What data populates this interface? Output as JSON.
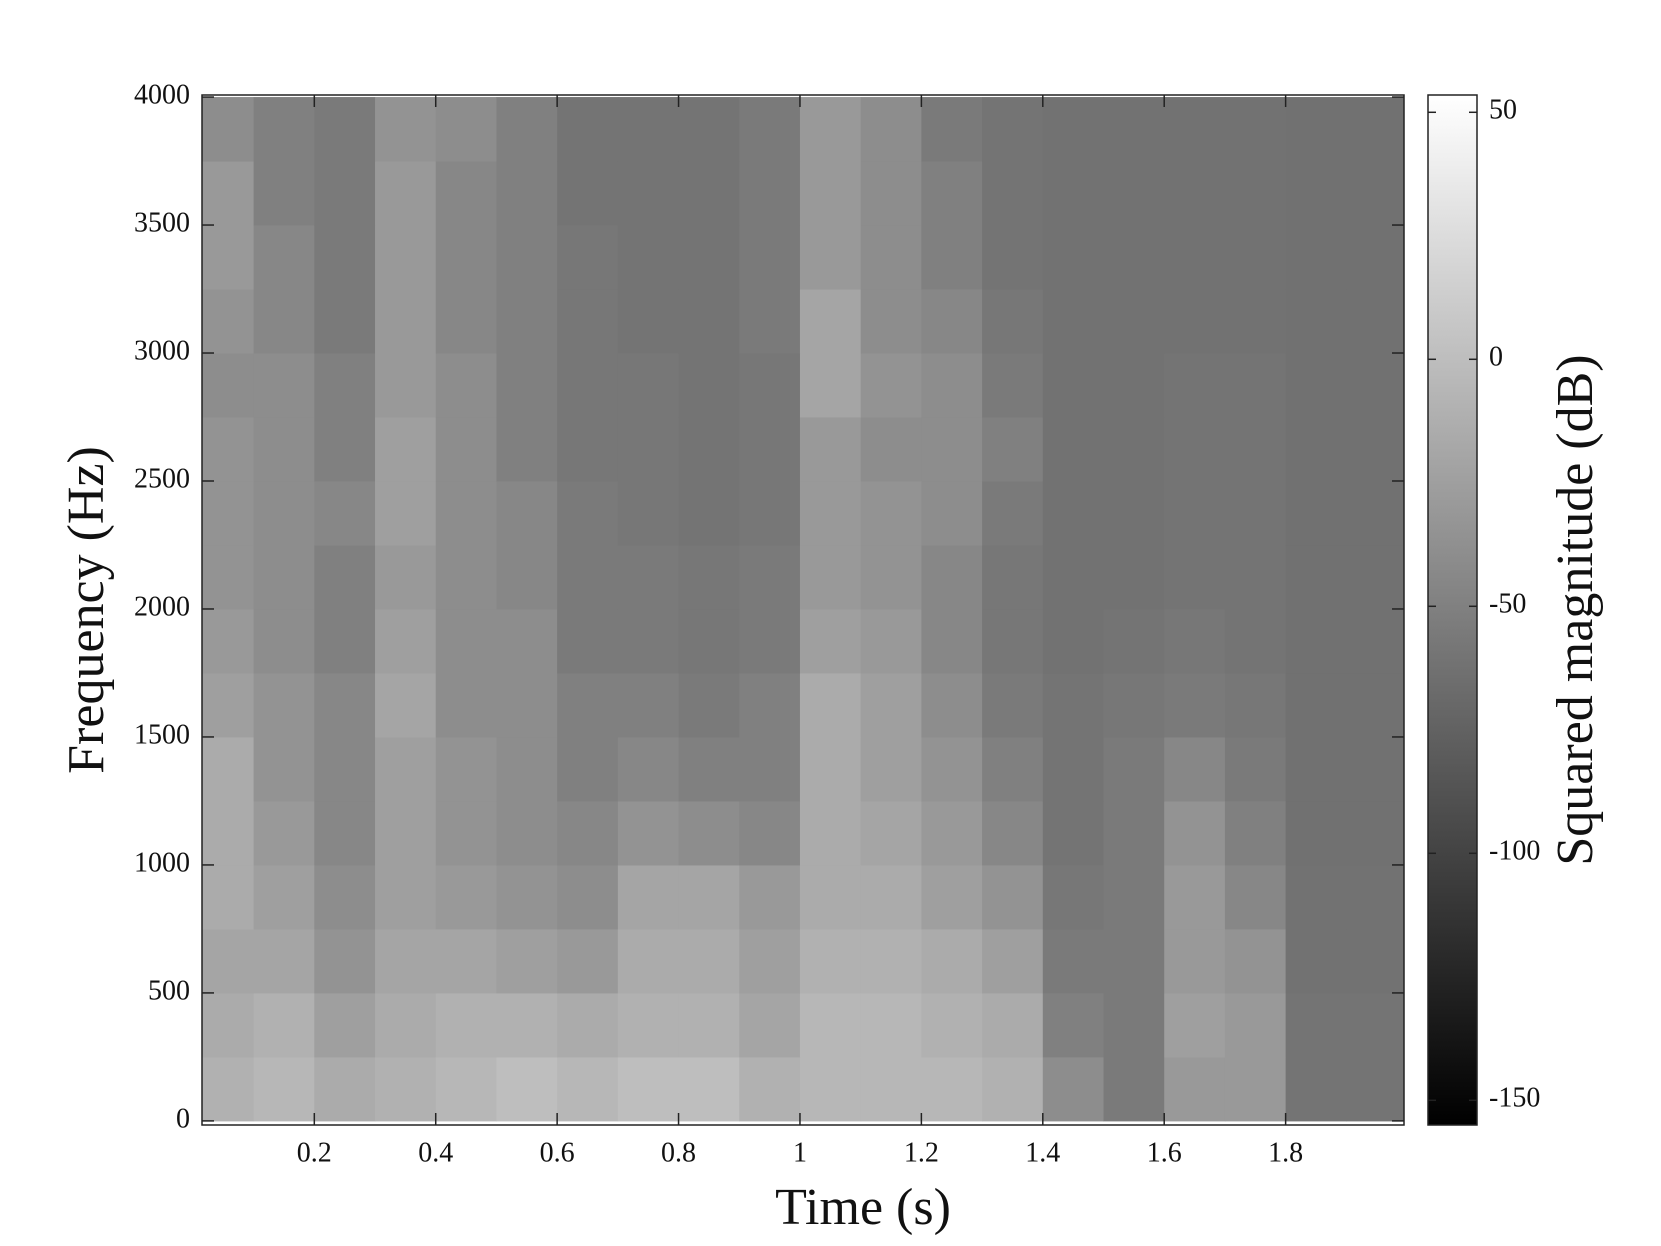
{
  "chart_data": {
    "type": "heatmap",
    "xlabel": "Time (s)",
    "ylabel": "Frequency (Hz)",
    "colorbar_label": "Squared magnitude (dB)",
    "colormap": "gray",
    "x": [
      0.05,
      0.15,
      0.25,
      0.35,
      0.45,
      0.55,
      0.65,
      0.75,
      0.85,
      0.95,
      1.05,
      1.15,
      1.25,
      1.35,
      1.45,
      1.55,
      1.65,
      1.75,
      1.85,
      1.95
    ],
    "y": [
      125,
      375,
      625,
      875,
      1125,
      1375,
      1625,
      1875,
      2125,
      2375,
      2625,
      2875,
      3125,
      3375,
      3625,
      3875
    ],
    "z": [
      [
        -10,
        -5,
        -15,
        -10,
        -5,
        0,
        -5,
        0,
        0,
        -10,
        -5,
        -5,
        -5,
        -10,
        -40,
        -55,
        -30,
        -30,
        -60,
        -60
      ],
      [
        -15,
        -10,
        -25,
        -15,
        -10,
        -10,
        -15,
        -10,
        -10,
        -20,
        -5,
        -5,
        -10,
        -15,
        -50,
        -55,
        -25,
        -30,
        -60,
        -60
      ],
      [
        -20,
        -20,
        -35,
        -20,
        -20,
        -25,
        -30,
        -15,
        -15,
        -25,
        -10,
        -10,
        -15,
        -25,
        -55,
        -55,
        -30,
        -35,
        -62,
        -62
      ],
      [
        -15,
        -25,
        -40,
        -25,
        -30,
        -35,
        -40,
        -20,
        -20,
        -30,
        -15,
        -15,
        -25,
        -35,
        -58,
        -55,
        -30,
        -45,
        -62,
        -62
      ],
      [
        -15,
        -30,
        -45,
        -25,
        -35,
        -40,
        -45,
        -35,
        -40,
        -45,
        -15,
        -20,
        -30,
        -45,
        -60,
        -55,
        -35,
        -50,
        -63,
        -63
      ],
      [
        -15,
        -35,
        -45,
        -25,
        -35,
        -40,
        -50,
        -45,
        -50,
        -50,
        -15,
        -25,
        -35,
        -50,
        -60,
        -55,
        -45,
        -55,
        -63,
        -63
      ],
      [
        -25,
        -35,
        -45,
        -20,
        -40,
        -40,
        -50,
        -50,
        -55,
        -50,
        -15,
        -25,
        -40,
        -55,
        -60,
        -58,
        -55,
        -58,
        -63,
        -63
      ],
      [
        -30,
        -40,
        -50,
        -25,
        -40,
        -40,
        -55,
        -55,
        -58,
        -55,
        -25,
        -30,
        -45,
        -58,
        -62,
        -60,
        -58,
        -60,
        -63,
        -63
      ],
      [
        -35,
        -40,
        -50,
        -30,
        -40,
        -45,
        -55,
        -55,
        -58,
        -55,
        -30,
        -35,
        -45,
        -58,
        -62,
        -62,
        -60,
        -60,
        -63,
        -63
      ],
      [
        -35,
        -40,
        -45,
        -25,
        -40,
        -45,
        -55,
        -58,
        -60,
        -58,
        -30,
        -35,
        -40,
        -55,
        -62,
        -62,
        -60,
        -60,
        -63,
        -63
      ],
      [
        -35,
        -40,
        -50,
        -25,
        -40,
        -50,
        -58,
        -58,
        -60,
        -58,
        -30,
        -40,
        -40,
        -50,
        -62,
        -62,
        -60,
        -60,
        -63,
        -63
      ],
      [
        -40,
        -40,
        -50,
        -30,
        -40,
        -50,
        -58,
        -58,
        -60,
        -58,
        -20,
        -35,
        -40,
        -55,
        -62,
        -62,
        -60,
        -60,
        -63,
        -63
      ],
      [
        -35,
        -45,
        -55,
        -30,
        -45,
        -50,
        -58,
        -60,
        -60,
        -55,
        -20,
        -40,
        -45,
        -58,
        -62,
        -62,
        -62,
        -62,
        -63,
        -63
      ],
      [
        -30,
        -45,
        -55,
        -30,
        -45,
        -50,
        -58,
        -60,
        -60,
        -55,
        -30,
        -40,
        -50,
        -60,
        -62,
        -62,
        -62,
        -62,
        -63,
        -63
      ],
      [
        -30,
        -50,
        -55,
        -30,
        -45,
        -50,
        -60,
        -60,
        -60,
        -55,
        -30,
        -40,
        -50,
        -60,
        -62,
        -62,
        -62,
        -62,
        -63,
        -63
      ],
      [
        -40,
        -50,
        -55,
        -35,
        -40,
        -50,
        -60,
        -60,
        -60,
        -55,
        -30,
        -40,
        -55,
        -60,
        -62,
        -62,
        -62,
        -62,
        -63,
        -63
      ]
    ],
    "xlim": [
      0.015,
      1.995
    ],
    "xticks": [
      0.2,
      0.4,
      0.6,
      0.8,
      1,
      1.2,
      1.4,
      1.6,
      1.8
    ],
    "ylim": [
      -16,
      4008
    ],
    "yticks": [
      0,
      500,
      1000,
      1500,
      2000,
      2500,
      3000,
      3500,
      4000
    ],
    "clim": [
      -155,
      53.5
    ],
    "cticks": [
      -150,
      -100,
      -50,
      0,
      50
    ]
  }
}
